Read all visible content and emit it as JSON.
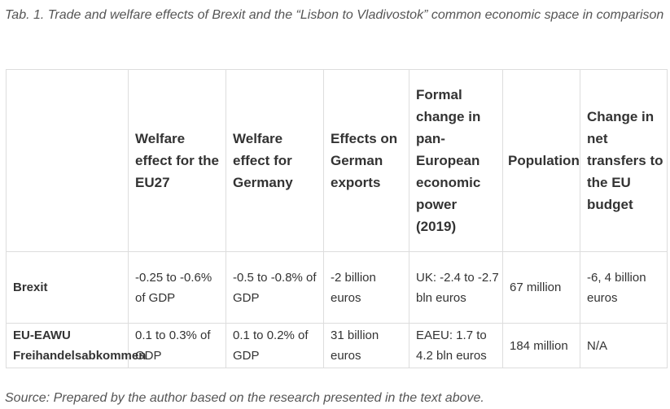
{
  "caption": "Tab. 1. Trade and welfare effects of Brexit and the “Lisbon to Vladivostok” common economic space  in comparison",
  "table": {
    "headers": [
      "",
      "Welfare effect for the EU27",
      "Welfare effect for Germany",
      "Effects on German exports",
      "Formal change in pan-European economic power (2019)",
      "Population",
      "Change in net transfers to the EU budget"
    ],
    "rows": [
      {
        "label": "Brexit",
        "cells": [
          "-0.25 to -0.6% of GDP",
          "-0.5 to -0.8% of GDP",
          "-2 billion euros",
          "UK: -2.4 to -2.7 bln euros",
          "67 million",
          "-6, 4 billion euros"
        ]
      },
      {
        "label": "EU-EAWU Freihandelsabkommen",
        "cells": [
          "0.1 to 0.3% of GDP",
          "0.1 to 0.2% of GDP",
          "31 billion euros",
          "EAEU: 1.7 to 4.2 bln euros",
          "184 million",
          "N/A"
        ]
      }
    ]
  },
  "source": "Source: Prepared by the author based on the research presented in the text above."
}
